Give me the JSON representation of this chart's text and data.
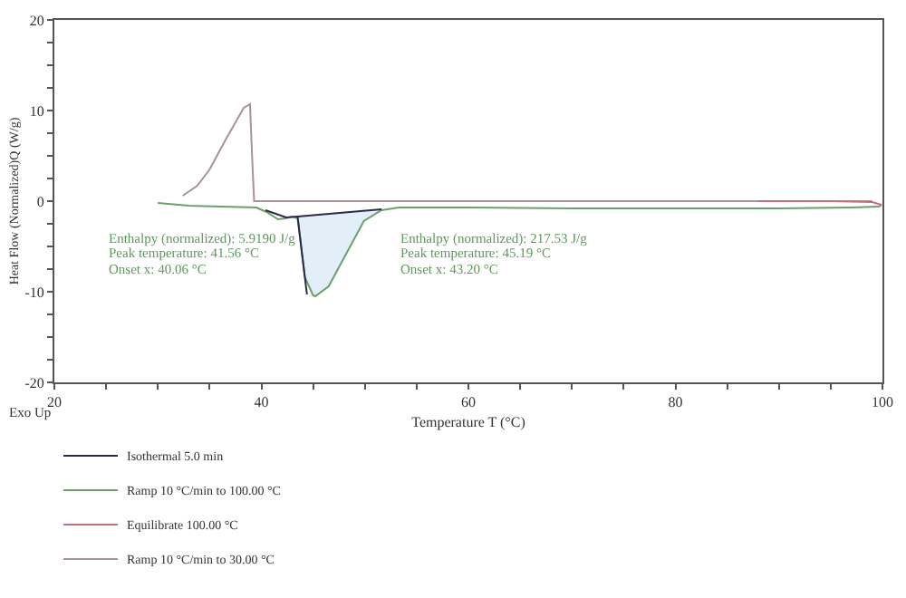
{
  "chart_data": {
    "type": "line",
    "xlabel": "Temperature T (°C)",
    "ylabel": "Heat Flow (Normalized)Q (W/g)",
    "xlim": [
      20,
      100
    ],
    "ylim": [
      -20,
      20
    ],
    "xticks": [
      20,
      {
        "value": 25,
        "label": null
      },
      {
        "value": 30,
        "label": null
      },
      {
        "value": 35,
        "label": null
      },
      40,
      {
        "value": 45,
        "label": null
      },
      {
        "value": 50,
        "label": null
      },
      {
        "value": 55,
        "label": null
      },
      60,
      {
        "value": 65,
        "label": null
      },
      {
        "value": 70,
        "label": null
      },
      {
        "value": 75,
        "label": null
      },
      80,
      {
        "value": 85,
        "label": null
      },
      {
        "value": 90,
        "label": null
      },
      {
        "value": 95,
        "label": null
      },
      100
    ],
    "yticks": [
      -20,
      {
        "value": -17.5,
        "label": null
      },
      {
        "value": -15,
        "label": null
      },
      {
        "value": -12.5,
        "label": null
      },
      -10,
      {
        "value": -7.5,
        "label": null
      },
      {
        "value": -5,
        "label": null
      },
      {
        "value": -2.5,
        "label": null
      },
      0,
      {
        "value": 2.5,
        "label": null
      },
      {
        "value": 5,
        "label": null
      },
      {
        "value": 7.5,
        "label": null
      },
      10,
      {
        "value": 12.5,
        "label": null
      },
      {
        "value": 15,
        "label": null
      },
      {
        "value": 17.5,
        "label": null
      },
      20
    ],
    "legend": "bottom",
    "marker": "none",
    "line_style": "solid",
    "series": [
      {
        "type": "area",
        "color": "#e3eff8",
        "x": [
          43.5,
          44.2,
          45.0,
          45.2,
          46.5,
          48.2,
          49.9,
          51.6
        ],
        "values": [
          -1.7,
          -8.4,
          -10.4,
          -10.5,
          -9.4,
          -5.8,
          -2.2,
          -0.9
        ]
      },
      {
        "name": "Isothermal 5.0 min",
        "color": "#2a2a4a",
        "x": [
          40.4,
          42.4,
          43.5,
          51.6,
          null,
          43.5,
          44.4
        ],
        "values": [
          -1.0,
          -1.8,
          -1.7,
          -0.9,
          null,
          -1.7,
          -10.3
        ]
      },
      {
        "name": "Ramp 10 °C/min to 100.00 °C",
        "color": "#6aa06a",
        "x": [
          30.0,
          33,
          36,
          39.5,
          40.5,
          41.6,
          42.3,
          43.0,
          43.5,
          44.2,
          45.0,
          45.2,
          46.5,
          48.2,
          49.9,
          51.6,
          53.3,
          60,
          70,
          80,
          90,
          97,
          99.7
        ],
        "values": [
          -0.2,
          -0.5,
          -0.6,
          -0.7,
          -1.2,
          -2.0,
          -1.9,
          -1.7,
          -1.9,
          -8.4,
          -10.4,
          -10.5,
          -9.4,
          -5.8,
          -2.2,
          -1.0,
          -0.7,
          -0.7,
          -0.8,
          -0.8,
          -0.8,
          -0.7,
          -0.6
        ]
      },
      {
        "name": "Equilibrate 100.00 °C",
        "color": "#c07078",
        "x": [
          88,
          95,
          99.0,
          99.9,
          99.7
        ],
        "values": [
          0.0,
          0.0,
          -0.1,
          -0.4,
          -0.6
        ]
      },
      {
        "name": "Ramp 10 °C/min to 30.00 °C",
        "color": "#a8909c",
        "x": [
          99.0,
          80,
          60,
          40,
          39.3,
          39.1,
          38.9,
          38.3,
          36.7,
          35.0,
          33.8,
          32.4
        ],
        "values": [
          0.0,
          0.0,
          0.0,
          0.0,
          0.0,
          5.0,
          10.7,
          10.3,
          7.1,
          3.5,
          1.7,
          0.6
        ]
      }
    ],
    "annotations": [
      "Enthalpy (normalized): 5.9190 J/g",
      "Peak temperature: 41.56 °C",
      "Onset x: 40.06 °C",
      "Enthalpy (normalized): 217.53 J/g",
      "Peak temperature: 45.19 °C",
      "Onset x: 43.20 °C",
      "Exo Up"
    ]
  }
}
